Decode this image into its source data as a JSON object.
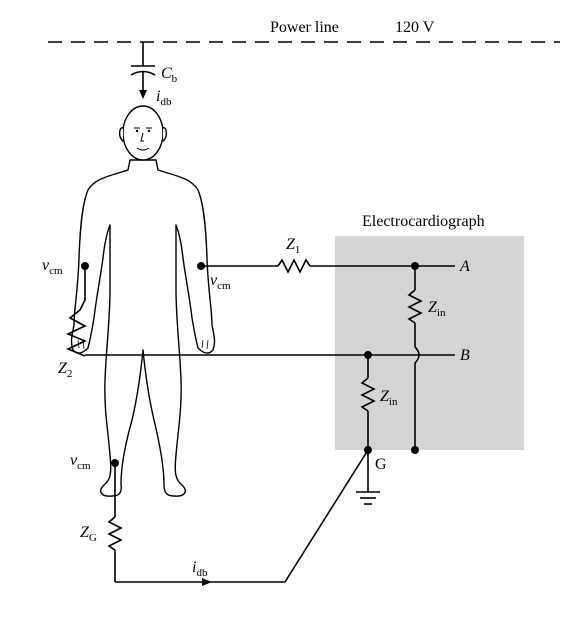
{
  "power_line": {
    "label": "Power line",
    "voltage": "120 V"
  },
  "capacitor": {
    "symbol": "C",
    "subscript": "b"
  },
  "displacement_current_top": {
    "symbol": "i",
    "subscript": "db"
  },
  "displacement_current_bottom": {
    "symbol": "i",
    "subscript": "db"
  },
  "device": {
    "title": "Electrocardiograph"
  },
  "impedance_z1": {
    "symbol": "Z",
    "subscript": "1"
  },
  "impedance_z2": {
    "symbol": "Z",
    "subscript": "2"
  },
  "impedance_zin_a": {
    "symbol": "Z",
    "subscript": "in"
  },
  "impedance_zin_b": {
    "symbol": "Z",
    "subscript": "in"
  },
  "impedance_zg": {
    "symbol": "Z",
    "subscript": "G"
  },
  "vcm_left_arm": {
    "symbol": "v",
    "subscript": "cm"
  },
  "vcm_right_arm": {
    "symbol": "v",
    "subscript": "cm"
  },
  "vcm_leg": {
    "symbol": "v",
    "subscript": "cm"
  },
  "terminals": {
    "a": "A",
    "b": "B",
    "g": "G"
  },
  "colors": {
    "device_box": "#d4d4d4",
    "line": "#000000"
  }
}
